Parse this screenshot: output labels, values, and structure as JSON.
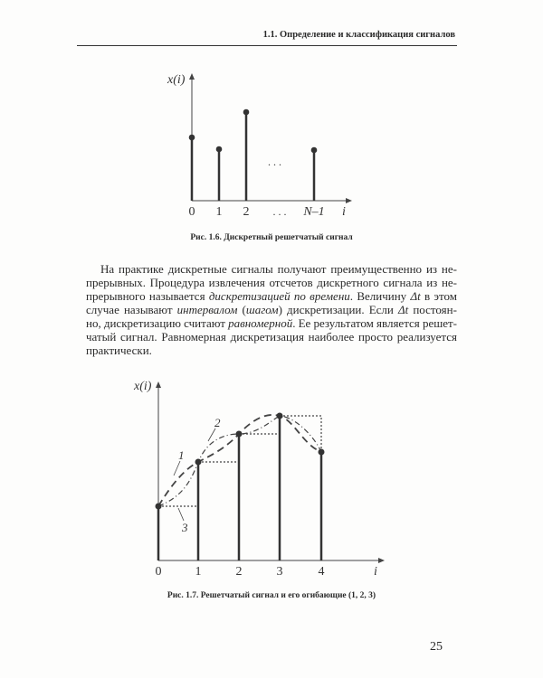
{
  "header": {
    "running_head": "1.1. Определение и классификация сигналов"
  },
  "figure_1": {
    "y_label": "x(i)",
    "x_label": "i",
    "x_ticks": [
      "0",
      "1",
      "2",
      ". . .",
      "N–1"
    ],
    "ellipsis": ". . .",
    "caption": "Рис. 1.6. Дискретный решетчатый сигнал"
  },
  "paragraph": {
    "lines": [
      [
        {
          "t": "На практике дискретные сигналы получают преимущественно из не-"
        }
      ],
      [
        {
          "t": "прерывных. Процедура извлечения отсчетов дискретного сигнала из не-"
        }
      ],
      [
        {
          "t": "прерывного называется "
        },
        {
          "t": "дискретизацией по времени",
          "i": true
        },
        {
          "t": ". Величину "
        },
        {
          "t": "Δt",
          "i": true
        },
        {
          "t": " в этом"
        }
      ],
      [
        {
          "t": "случае называют "
        },
        {
          "t": "интервалом",
          "i": true
        },
        {
          "t": " ("
        },
        {
          "t": "шагом",
          "i": true
        },
        {
          "t": ") дискретизации. Если "
        },
        {
          "t": "Δt",
          "i": true
        },
        {
          "t": " постоян-"
        }
      ],
      [
        {
          "t": "но, дискретизацию считают "
        },
        {
          "t": "равномерной",
          "i": true
        },
        {
          "t": ". Ее результатом является решет-"
        }
      ],
      [
        {
          "t": "чатый сигнал. Равномерная дискретизация наиболее просто реализуется"
        }
      ],
      [
        {
          "t": "практически."
        }
      ]
    ]
  },
  "figure_2": {
    "y_label": "x(i)",
    "x_label": "i",
    "x_ticks": [
      "0",
      "1",
      "2",
      "3",
      "4"
    ],
    "curve_labels": [
      "1",
      "2",
      "3"
    ],
    "caption": "Рис. 1.7. Решетчатый сигнал и его огибающие (1, 2, 3)"
  },
  "footer": {
    "page_number": "25"
  }
}
